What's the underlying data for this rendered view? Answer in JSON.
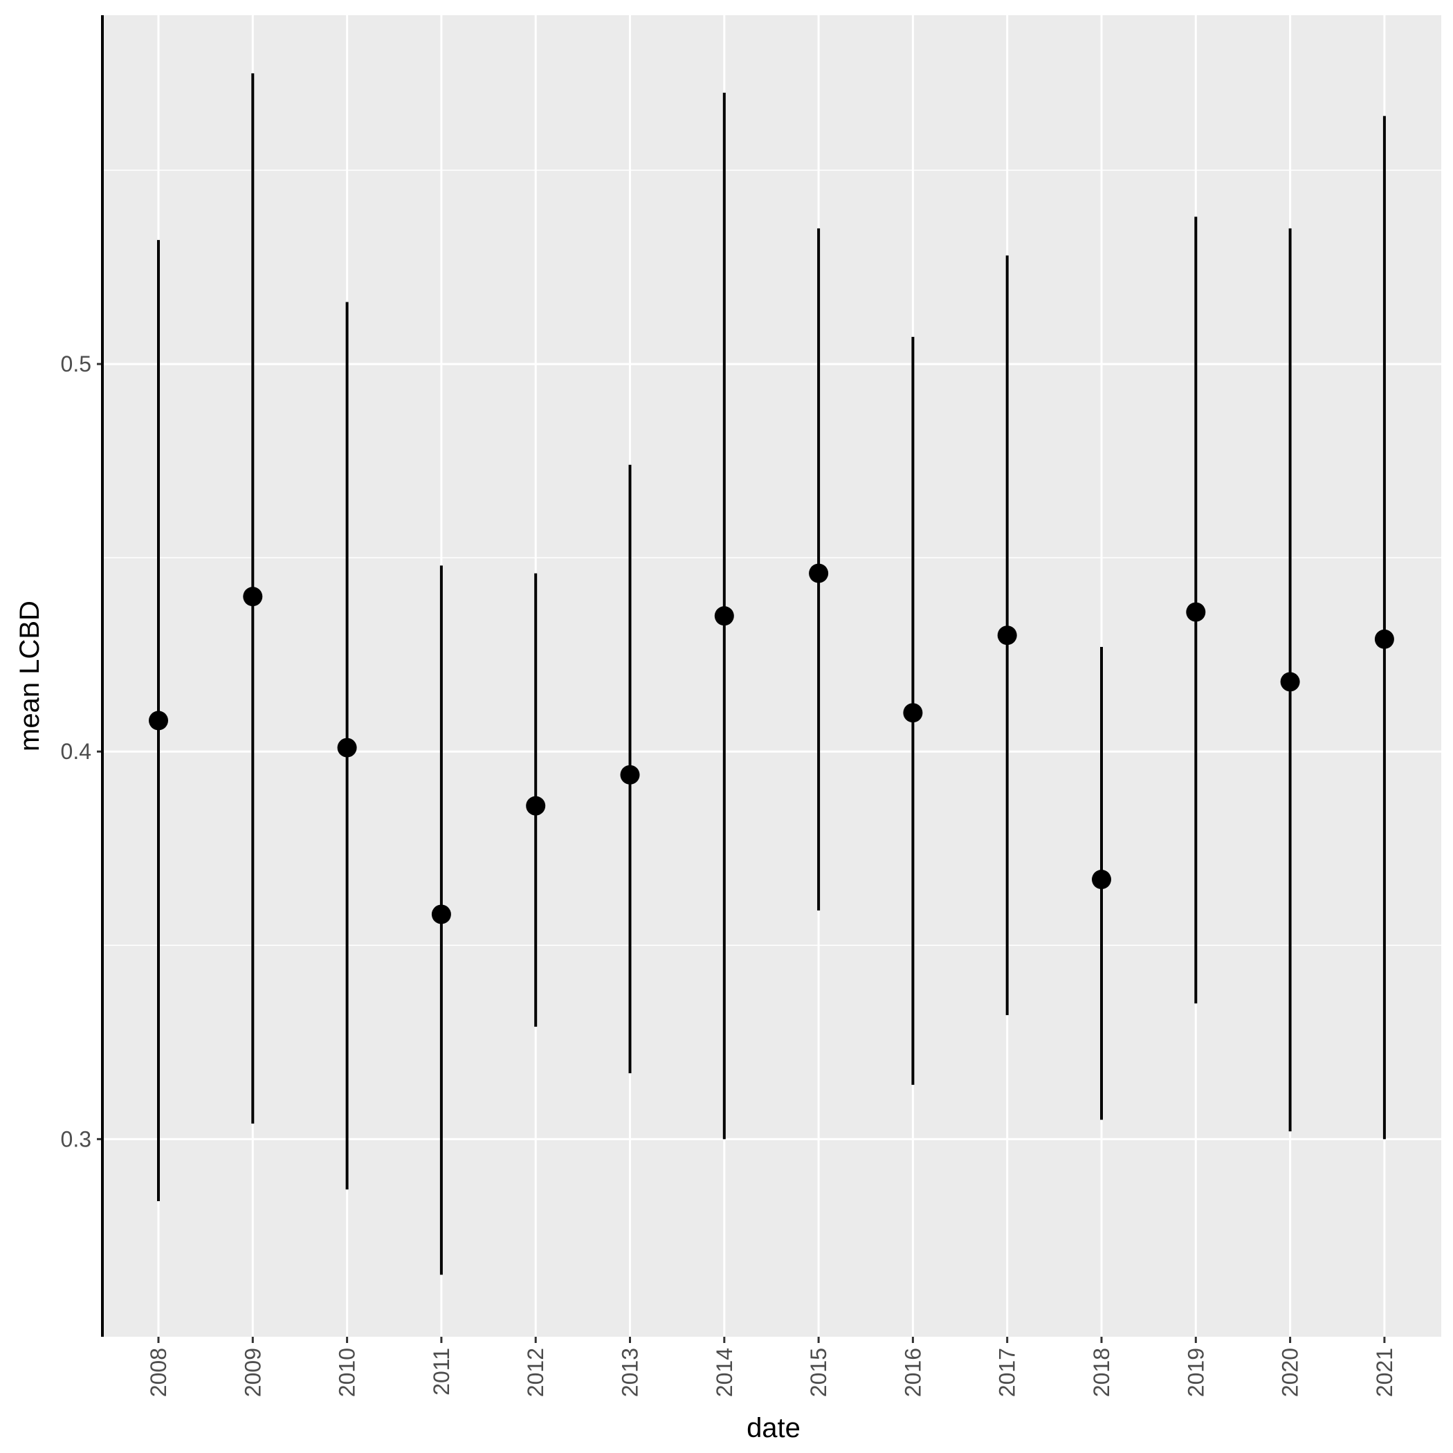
{
  "chart_data": {
    "type": "scatter",
    "subtype": "point-range",
    "title": "",
    "xlabel": "date",
    "ylabel": "mean LCBD",
    "categories": [
      "2008",
      "2009",
      "2010",
      "2011",
      "2012",
      "2013",
      "2014",
      "2015",
      "2016",
      "2017",
      "2018",
      "2019",
      "2020",
      "2021"
    ],
    "series": [
      {
        "mean": [
          0.408,
          0.44,
          0.401,
          0.358,
          0.386,
          0.394,
          0.435,
          0.446,
          0.41,
          0.43,
          0.367,
          0.436,
          0.418,
          0.429
        ],
        "lower": [
          0.284,
          0.304,
          0.287,
          0.265,
          0.329,
          0.317,
          0.3,
          0.359,
          0.314,
          0.332,
          0.305,
          0.335,
          0.302,
          0.3
        ],
        "upper": [
          0.532,
          0.575,
          0.516,
          0.448,
          0.446,
          0.474,
          0.57,
          0.535,
          0.507,
          0.528,
          0.427,
          0.538,
          0.535,
          0.564
        ]
      }
    ],
    "ylim": [
      0.249,
      0.59
    ],
    "yticks": [
      "0.3",
      "0.4",
      "0.5"
    ],
    "ytick_values": [
      0.3,
      0.4,
      0.5
    ],
    "y_minor_gridlines": [
      0.35,
      0.45,
      0.55
    ],
    "grid": true,
    "legend": "none",
    "colors": {
      "panel_background": "#ebebeb",
      "gridline": "#ffffff",
      "point": "#000000",
      "errorbar": "#000000",
      "tick_label": "#4d4d4d",
      "axis_title": "#000000"
    }
  }
}
